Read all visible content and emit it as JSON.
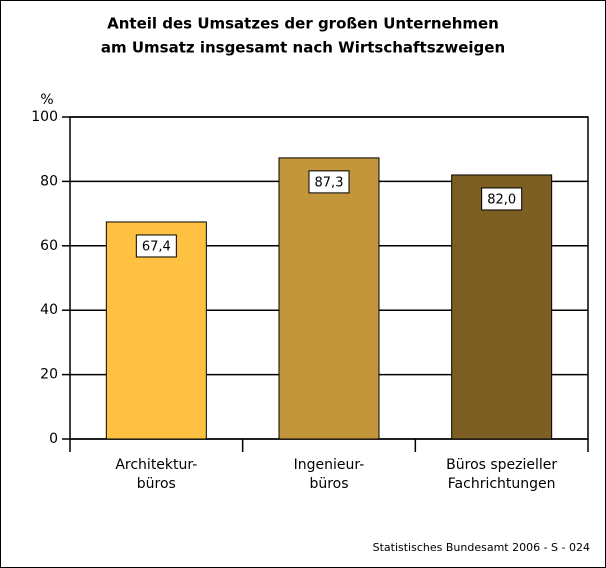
{
  "chart_data": {
    "type": "bar",
    "title": [
      "Anteil des Umsatzes der großen Unternehmen",
      "am Umsatz insgesamt nach Wirtschaftszweigen"
    ],
    "y_unit": "%",
    "categories": [
      [
        "Architektur-",
        "büros"
      ],
      [
        "Ingenieur-",
        "büros"
      ],
      [
        "Büros spezieller",
        "Fachrichtungen"
      ]
    ],
    "values": [
      67.4,
      87.3,
      82.0
    ],
    "value_labels": [
      "67,4",
      "87,3",
      "82,0"
    ],
    "colors": [
      "#fec142",
      "#c3963b",
      "#7e5f23"
    ],
    "ylim": [
      0,
      100
    ],
    "yticks": [
      0,
      20,
      40,
      60,
      80,
      100
    ],
    "grid": true,
    "source": "Statistisches Bundesamt 2006 - S - 024"
  }
}
